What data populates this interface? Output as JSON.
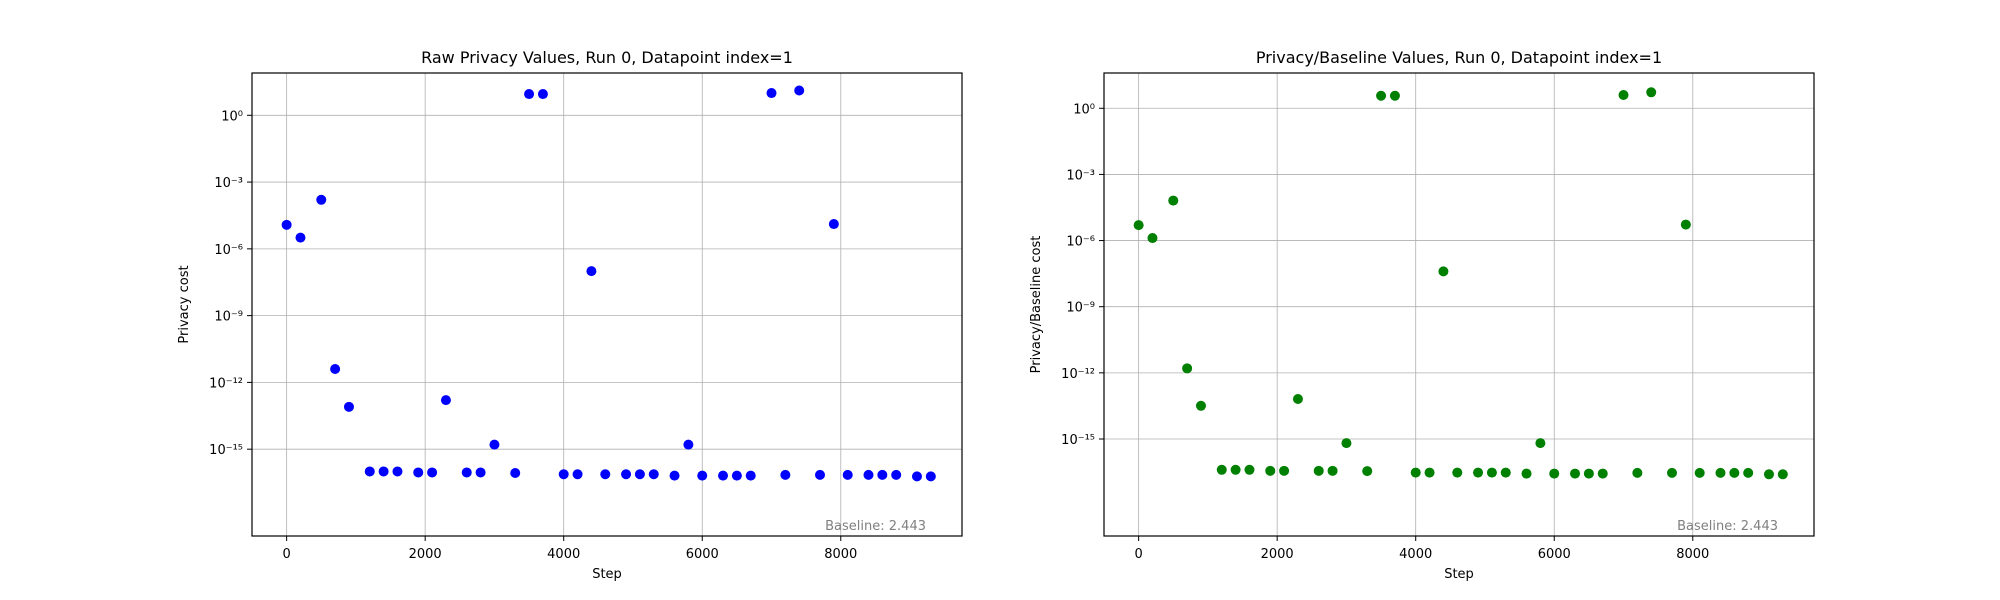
{
  "chart_data": [
    {
      "type": "scatter",
      "title": "Raw Privacy Values, Run 0, Datapoint index=1",
      "xlabel": "Step",
      "ylabel": "Privacy cost",
      "yscale": "log",
      "xlim": [
        -500,
        9750
      ],
      "ylim_exp": [
        -18.9,
        1.9
      ],
      "x_ticks": [
        0,
        2000,
        4000,
        6000,
        8000
      ],
      "y_ticks_exp": [
        0,
        -3,
        -6,
        -9,
        -12,
        -15
      ],
      "grid": true,
      "color": "#0000ff",
      "annotation": "Baseline: 2.443",
      "points": [
        [
          0,
          1.2e-05
        ],
        [
          200,
          3.2e-06
        ],
        [
          500,
          0.00016
        ],
        [
          700,
          4e-12
        ],
        [
          900,
          8e-14
        ],
        [
          1200,
          1e-16
        ],
        [
          1400,
          1e-16
        ],
        [
          1600,
          1e-16
        ],
        [
          1900,
          9e-17
        ],
        [
          2100,
          9e-17
        ],
        [
          2300,
          1.6e-13
        ],
        [
          2600,
          9e-17
        ],
        [
          2800,
          9e-17
        ],
        [
          3000,
          1.6e-15
        ],
        [
          3300,
          8.5e-17
        ],
        [
          3500,
          9
        ],
        [
          3700,
          9
        ],
        [
          4000,
          7.5e-17
        ],
        [
          4200,
          7.5e-17
        ],
        [
          4400,
          1e-07
        ],
        [
          4600,
          7.5e-17
        ],
        [
          4900,
          7.5e-17
        ],
        [
          5100,
          7.5e-17
        ],
        [
          5300,
          7.5e-17
        ],
        [
          5600,
          6.5e-17
        ],
        [
          5800,
          1.6e-15
        ],
        [
          6000,
          6.5e-17
        ],
        [
          6300,
          6.5e-17
        ],
        [
          6500,
          6.5e-17
        ],
        [
          6700,
          6.5e-17
        ],
        [
          7000,
          10
        ],
        [
          7200,
          7e-17
        ],
        [
          7400,
          13
        ],
        [
          7700,
          7e-17
        ],
        [
          7900,
          1.3e-05
        ],
        [
          8100,
          7e-17
        ],
        [
          8400,
          7e-17
        ],
        [
          8600,
          7e-17
        ],
        [
          8800,
          7e-17
        ],
        [
          9100,
          6e-17
        ],
        [
          9300,
          6e-17
        ]
      ]
    },
    {
      "type": "scatter",
      "title": "Privacy/Baseline Values, Run 0, Datapoint index=1",
      "xlabel": "Step",
      "ylabel": "Privacy/Baseline cost",
      "yscale": "log",
      "xlim": [
        -500,
        9750
      ],
      "ylim_exp": [
        -19.4,
        1.6
      ],
      "x_ticks": [
        0,
        2000,
        4000,
        6000,
        8000
      ],
      "y_ticks_exp": [
        0,
        -3,
        -6,
        -9,
        -12,
        -15
      ],
      "grid": true,
      "color": "#008000",
      "annotation": "Baseline: 2.443",
      "points": [
        [
          0,
          5e-06
        ],
        [
          200,
          1.3e-06
        ],
        [
          500,
          6.5e-05
        ],
        [
          700,
          1.6e-12
        ],
        [
          900,
          3.2e-14
        ],
        [
          1200,
          4e-17
        ],
        [
          1400,
          4e-17
        ],
        [
          1600,
          4e-17
        ],
        [
          1900,
          3.6e-17
        ],
        [
          2100,
          3.6e-17
        ],
        [
          2300,
          6.5e-14
        ],
        [
          2600,
          3.6e-17
        ],
        [
          2800,
          3.6e-17
        ],
        [
          3000,
          6.5e-16
        ],
        [
          3300,
          3.5e-17
        ],
        [
          3500,
          3.7
        ],
        [
          3700,
          3.7
        ],
        [
          4000,
          3e-17
        ],
        [
          4200,
          3e-17
        ],
        [
          4400,
          4e-08
        ],
        [
          4600,
          3e-17
        ],
        [
          4900,
          3e-17
        ],
        [
          5100,
          3e-17
        ],
        [
          5300,
          3e-17
        ],
        [
          5600,
          2.7e-17
        ],
        [
          5800,
          6.5e-16
        ],
        [
          6000,
          2.7e-17
        ],
        [
          6300,
          2.7e-17
        ],
        [
          6500,
          2.7e-17
        ],
        [
          6700,
          2.7e-17
        ],
        [
          7000,
          4
        ],
        [
          7200,
          2.9e-17
        ],
        [
          7400,
          5.3
        ],
        [
          7700,
          2.9e-17
        ],
        [
          7900,
          5.3e-06
        ],
        [
          8100,
          2.9e-17
        ],
        [
          8400,
          2.9e-17
        ],
        [
          8600,
          2.9e-17
        ],
        [
          8800,
          2.9e-17
        ],
        [
          9100,
          2.5e-17
        ],
        [
          9300,
          2.5e-17
        ]
      ]
    }
  ]
}
